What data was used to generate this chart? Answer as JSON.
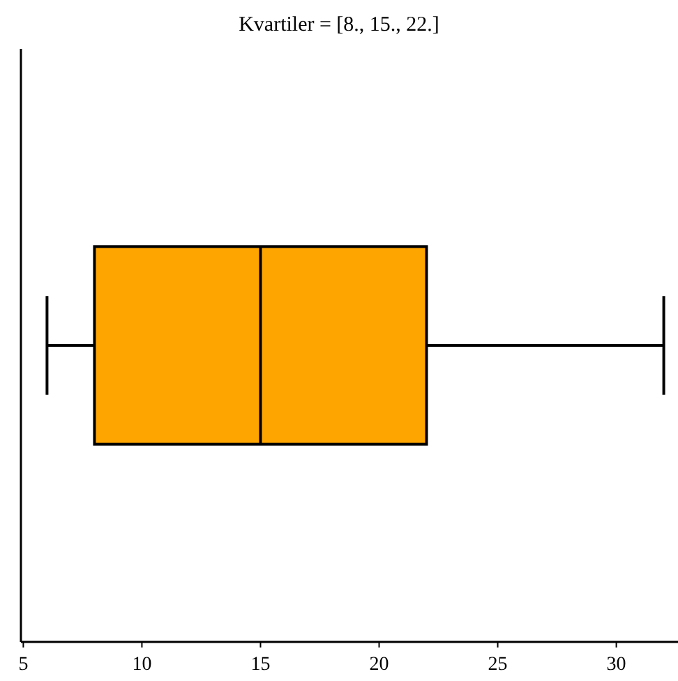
{
  "chart_data": {
    "type": "box",
    "orientation": "horizontal",
    "title": "Kvartiler = [8., 15., 22.]",
    "categories": [
      null
    ],
    "color": "#ffa500",
    "boxes": [
      {
        "low": 6,
        "q1": 8,
        "median": 15,
        "q3": 22,
        "high": 32
      }
    ],
    "xlim": [
      4.9,
      32.6
    ],
    "xticks": [
      5,
      10,
      15,
      20,
      25,
      30
    ],
    "grid": false
  }
}
